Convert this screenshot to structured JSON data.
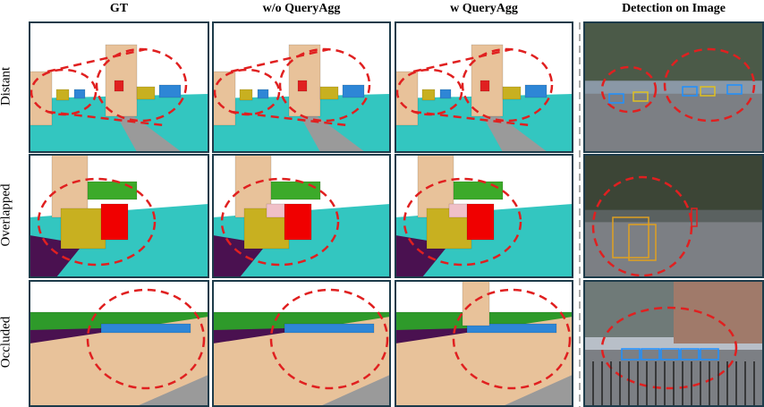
{
  "columns": [
    "GT",
    "w/o QueryAgg",
    "w QueryAgg",
    "Detection on Image"
  ],
  "rows": [
    "Distant",
    "Overlapped",
    "Occluded"
  ]
}
